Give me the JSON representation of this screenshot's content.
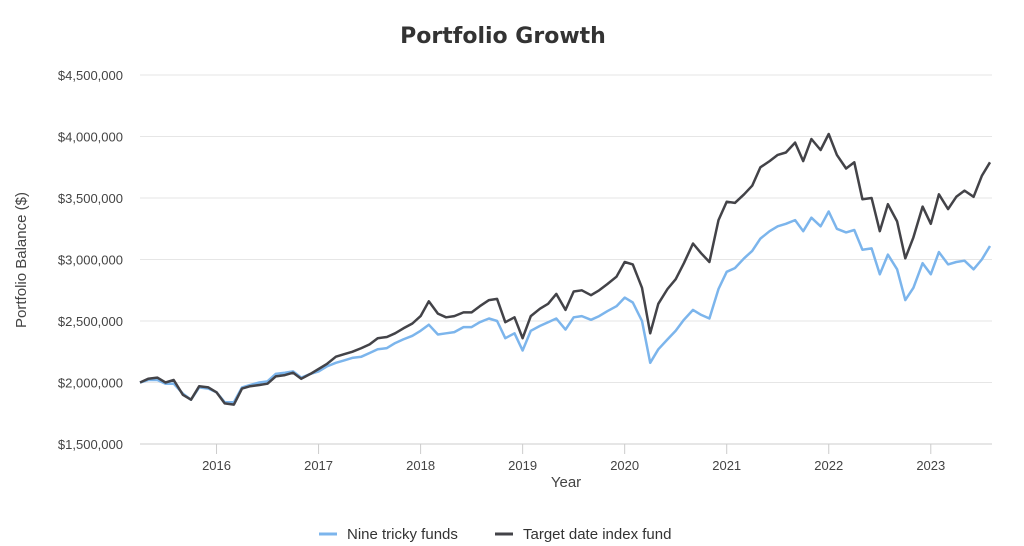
{
  "chart_data": {
    "type": "line",
    "title": "Portfolio Growth",
    "xlabel": "Year",
    "ylabel": "Portfolio Balance ($)",
    "ylim": [
      1500000,
      4500000
    ],
    "xlim": [
      2015.25,
      2023.6
    ],
    "y_ticks": [
      {
        "value": 1500000,
        "label": "$1,500,000"
      },
      {
        "value": 2000000,
        "label": "$2,000,000"
      },
      {
        "value": 2500000,
        "label": "$2,500,000"
      },
      {
        "value": 3000000,
        "label": "$3,000,000"
      },
      {
        "value": 3500000,
        "label": "$3,500,000"
      },
      {
        "value": 4000000,
        "label": "$4,000,000"
      },
      {
        "value": 4500000,
        "label": "$4,500,000"
      }
    ],
    "x_ticks": [
      {
        "value": 2016,
        "label": "2016"
      },
      {
        "value": 2017,
        "label": "2017"
      },
      {
        "value": 2018,
        "label": "2018"
      },
      {
        "value": 2019,
        "label": "2019"
      },
      {
        "value": 2020,
        "label": "2020"
      },
      {
        "value": 2021,
        "label": "2021"
      },
      {
        "value": 2022,
        "label": "2022"
      },
      {
        "value": 2023,
        "label": "2023"
      }
    ],
    "grid": "horizontal",
    "legend_position": "bottom",
    "series": [
      {
        "name": "Nine tricky funds",
        "color": "#7cb5ec",
        "points": [
          [
            2015.25,
            2000000
          ],
          [
            2015.33,
            2020000
          ],
          [
            2015.42,
            2020000
          ],
          [
            2015.5,
            1990000
          ],
          [
            2015.58,
            1990000
          ],
          [
            2015.67,
            1910000
          ],
          [
            2015.75,
            1860000
          ],
          [
            2015.83,
            1960000
          ],
          [
            2015.92,
            1950000
          ],
          [
            2016.0,
            1920000
          ],
          [
            2016.08,
            1840000
          ],
          [
            2016.17,
            1840000
          ],
          [
            2016.25,
            1960000
          ],
          [
            2016.33,
            1980000
          ],
          [
            2016.42,
            2000000
          ],
          [
            2016.5,
            2010000
          ],
          [
            2016.58,
            2070000
          ],
          [
            2016.67,
            2080000
          ],
          [
            2016.75,
            2090000
          ],
          [
            2016.83,
            2040000
          ],
          [
            2016.92,
            2070000
          ],
          [
            2017.0,
            2090000
          ],
          [
            2017.08,
            2130000
          ],
          [
            2017.17,
            2160000
          ],
          [
            2017.25,
            2180000
          ],
          [
            2017.33,
            2200000
          ],
          [
            2017.42,
            2210000
          ],
          [
            2017.5,
            2240000
          ],
          [
            2017.58,
            2270000
          ],
          [
            2017.67,
            2280000
          ],
          [
            2017.75,
            2320000
          ],
          [
            2017.83,
            2350000
          ],
          [
            2017.92,
            2380000
          ],
          [
            2018.0,
            2420000
          ],
          [
            2018.08,
            2470000
          ],
          [
            2018.17,
            2390000
          ],
          [
            2018.25,
            2400000
          ],
          [
            2018.33,
            2410000
          ],
          [
            2018.42,
            2450000
          ],
          [
            2018.5,
            2450000
          ],
          [
            2018.58,
            2490000
          ],
          [
            2018.67,
            2520000
          ],
          [
            2018.75,
            2500000
          ],
          [
            2018.83,
            2360000
          ],
          [
            2018.92,
            2400000
          ],
          [
            2019.0,
            2260000
          ],
          [
            2019.08,
            2420000
          ],
          [
            2019.17,
            2460000
          ],
          [
            2019.25,
            2490000
          ],
          [
            2019.33,
            2520000
          ],
          [
            2019.42,
            2430000
          ],
          [
            2019.5,
            2530000
          ],
          [
            2019.58,
            2540000
          ],
          [
            2019.67,
            2510000
          ],
          [
            2019.75,
            2540000
          ],
          [
            2019.83,
            2580000
          ],
          [
            2019.92,
            2620000
          ],
          [
            2020.0,
            2690000
          ],
          [
            2020.08,
            2650000
          ],
          [
            2020.17,
            2500000
          ],
          [
            2020.25,
            2160000
          ],
          [
            2020.33,
            2270000
          ],
          [
            2020.42,
            2350000
          ],
          [
            2020.5,
            2420000
          ],
          [
            2020.58,
            2510000
          ],
          [
            2020.67,
            2590000
          ],
          [
            2020.75,
            2550000
          ],
          [
            2020.83,
            2520000
          ],
          [
            2020.92,
            2760000
          ],
          [
            2021.0,
            2900000
          ],
          [
            2021.08,
            2930000
          ],
          [
            2021.17,
            3010000
          ],
          [
            2021.25,
            3070000
          ],
          [
            2021.33,
            3170000
          ],
          [
            2021.42,
            3230000
          ],
          [
            2021.5,
            3270000
          ],
          [
            2021.58,
            3290000
          ],
          [
            2021.67,
            3320000
          ],
          [
            2021.75,
            3230000
          ],
          [
            2021.83,
            3340000
          ],
          [
            2021.92,
            3270000
          ],
          [
            2022.0,
            3390000
          ],
          [
            2022.08,
            3250000
          ],
          [
            2022.17,
            3220000
          ],
          [
            2022.25,
            3240000
          ],
          [
            2022.33,
            3080000
          ],
          [
            2022.42,
            3090000
          ],
          [
            2022.5,
            2880000
          ],
          [
            2022.58,
            3040000
          ],
          [
            2022.67,
            2920000
          ],
          [
            2022.75,
            2670000
          ],
          [
            2022.83,
            2770000
          ],
          [
            2022.92,
            2970000
          ],
          [
            2023.0,
            2880000
          ],
          [
            2023.08,
            3060000
          ],
          [
            2023.17,
            2960000
          ],
          [
            2023.25,
            2980000
          ],
          [
            2023.33,
            2990000
          ],
          [
            2023.42,
            2920000
          ],
          [
            2023.5,
            3000000
          ],
          [
            2023.58,
            3110000
          ]
        ]
      },
      {
        "name": "Target date index fund",
        "color": "#434348",
        "points": [
          [
            2015.25,
            2000000
          ],
          [
            2015.33,
            2030000
          ],
          [
            2015.42,
            2040000
          ],
          [
            2015.5,
            2000000
          ],
          [
            2015.58,
            2020000
          ],
          [
            2015.67,
            1900000
          ],
          [
            2015.75,
            1860000
          ],
          [
            2015.83,
            1970000
          ],
          [
            2015.92,
            1960000
          ],
          [
            2016.0,
            1920000
          ],
          [
            2016.08,
            1830000
          ],
          [
            2016.17,
            1820000
          ],
          [
            2016.25,
            1950000
          ],
          [
            2016.33,
            1970000
          ],
          [
            2016.42,
            1980000
          ],
          [
            2016.5,
            1990000
          ],
          [
            2016.58,
            2050000
          ],
          [
            2016.67,
            2060000
          ],
          [
            2016.75,
            2080000
          ],
          [
            2016.83,
            2030000
          ],
          [
            2016.92,
            2070000
          ],
          [
            2017.0,
            2110000
          ],
          [
            2017.08,
            2150000
          ],
          [
            2017.17,
            2210000
          ],
          [
            2017.25,
            2230000
          ],
          [
            2017.33,
            2250000
          ],
          [
            2017.42,
            2280000
          ],
          [
            2017.5,
            2310000
          ],
          [
            2017.58,
            2360000
          ],
          [
            2017.67,
            2370000
          ],
          [
            2017.75,
            2400000
          ],
          [
            2017.83,
            2440000
          ],
          [
            2017.92,
            2480000
          ],
          [
            2018.0,
            2540000
          ],
          [
            2018.08,
            2660000
          ],
          [
            2018.17,
            2560000
          ],
          [
            2018.25,
            2530000
          ],
          [
            2018.33,
            2540000
          ],
          [
            2018.42,
            2570000
          ],
          [
            2018.5,
            2570000
          ],
          [
            2018.58,
            2620000
          ],
          [
            2018.67,
            2670000
          ],
          [
            2018.75,
            2680000
          ],
          [
            2018.83,
            2490000
          ],
          [
            2018.92,
            2530000
          ],
          [
            2019.0,
            2360000
          ],
          [
            2019.08,
            2540000
          ],
          [
            2019.17,
            2600000
          ],
          [
            2019.25,
            2640000
          ],
          [
            2019.33,
            2720000
          ],
          [
            2019.42,
            2590000
          ],
          [
            2019.5,
            2740000
          ],
          [
            2019.58,
            2750000
          ],
          [
            2019.67,
            2710000
          ],
          [
            2019.75,
            2750000
          ],
          [
            2019.83,
            2800000
          ],
          [
            2019.92,
            2860000
          ],
          [
            2020.0,
            2980000
          ],
          [
            2020.08,
            2960000
          ],
          [
            2020.17,
            2770000
          ],
          [
            2020.25,
            2400000
          ],
          [
            2020.33,
            2640000
          ],
          [
            2020.42,
            2760000
          ],
          [
            2020.5,
            2840000
          ],
          [
            2020.58,
            2970000
          ],
          [
            2020.67,
            3130000
          ],
          [
            2020.75,
            3050000
          ],
          [
            2020.83,
            2980000
          ],
          [
            2020.92,
            3320000
          ],
          [
            2021.0,
            3470000
          ],
          [
            2021.08,
            3460000
          ],
          [
            2021.17,
            3530000
          ],
          [
            2021.25,
            3600000
          ],
          [
            2021.33,
            3750000
          ],
          [
            2021.42,
            3800000
          ],
          [
            2021.5,
            3850000
          ],
          [
            2021.58,
            3870000
          ],
          [
            2021.67,
            3950000
          ],
          [
            2021.75,
            3800000
          ],
          [
            2021.83,
            3980000
          ],
          [
            2021.92,
            3890000
          ],
          [
            2022.0,
            4020000
          ],
          [
            2022.08,
            3850000
          ],
          [
            2022.17,
            3740000
          ],
          [
            2022.25,
            3790000
          ],
          [
            2022.33,
            3490000
          ],
          [
            2022.42,
            3500000
          ],
          [
            2022.5,
            3230000
          ],
          [
            2022.58,
            3450000
          ],
          [
            2022.67,
            3310000
          ],
          [
            2022.75,
            3010000
          ],
          [
            2022.83,
            3180000
          ],
          [
            2022.92,
            3430000
          ],
          [
            2023.0,
            3290000
          ],
          [
            2023.08,
            3530000
          ],
          [
            2023.17,
            3410000
          ],
          [
            2023.25,
            3510000
          ],
          [
            2023.33,
            3560000
          ],
          [
            2023.42,
            3510000
          ],
          [
            2023.5,
            3680000
          ],
          [
            2023.58,
            3790000
          ]
        ]
      }
    ]
  }
}
